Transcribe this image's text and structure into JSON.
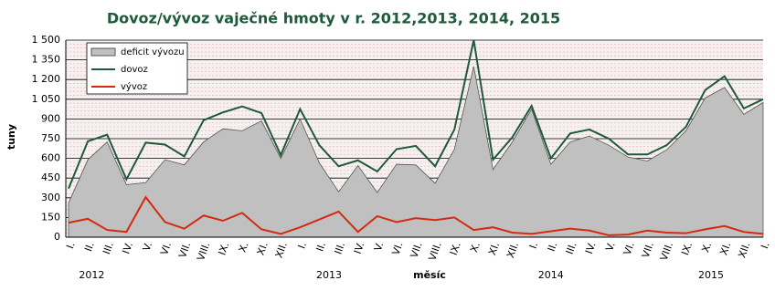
{
  "chart_data": {
    "type": "line",
    "title": "Dovoz/vývoz vaječné hmoty v r. 2012,2013, 2014, 2015",
    "y_label": "tuny",
    "x_label": "měsíc",
    "categories": [
      "I.",
      "II.",
      "III.",
      "IV.",
      "V.",
      "VI.",
      "VII.",
      "VIII.",
      "IX.",
      "X.",
      "XI.",
      "XII.",
      "I.",
      "II.",
      "III.",
      "IV.",
      "V.",
      "VI.",
      "VII.",
      "VIII.",
      "IX.",
      "X.",
      "XI.",
      "XII.",
      "I.",
      "II.",
      "III.",
      "IV.",
      "V.",
      "VI.",
      "VII.",
      "VIII.",
      "IX.",
      "X.",
      "XI.",
      "XII.",
      "I."
    ],
    "year_labels": [
      "2012",
      "2013",
      "2014",
      "2015"
    ],
    "series": [
      {
        "name": "deficit vývozu",
        "kind": "area",
        "color": "#c0c0c0",
        "values": [
          260,
          590,
          725,
          400,
          415,
          590,
          550,
          725,
          825,
          810,
          885,
          600,
          900,
          565,
          345,
          545,
          340,
          555,
          550,
          410,
          670,
          1300,
          515,
          725,
          975,
          555,
          725,
          770,
          700,
          610,
          580,
          665,
          810,
          1060,
          1140,
          935,
          1025
        ]
      },
      {
        "name": "dovoz",
        "kind": "line",
        "color": "#1e5a3c",
        "values": [
          370,
          730,
          780,
          440,
          720,
          705,
          615,
          890,
          950,
          995,
          945,
          625,
          975,
          700,
          540,
          585,
          500,
          670,
          695,
          540,
          820,
          1500,
          590,
          760,
          1000,
          600,
          790,
          820,
          750,
          630,
          630,
          700,
          840,
          1120,
          1225,
          980,
          1050
        ]
      },
      {
        "name": "vývoz",
        "kind": "line",
        "color": "#d42a10",
        "values": [
          110,
          140,
          55,
          40,
          305,
          115,
          65,
          165,
          125,
          185,
          60,
          25,
          75,
          135,
          195,
          40,
          160,
          115,
          145,
          130,
          150,
          55,
          75,
          35,
          25,
          45,
          65,
          50,
          15,
          20,
          50,
          35,
          30,
          60,
          85,
          40,
          25
        ]
      }
    ],
    "ylim": [
      0,
      1500
    ],
    "yticks": [
      0,
      150,
      300,
      450,
      600,
      750,
      900,
      {
        "value": 1050,
        "label": "1 050"
      },
      {
        "value": 1200,
        "label": "1 200"
      },
      {
        "value": 1350,
        "label": "1 350"
      },
      {
        "value": 1500,
        "label": "1 500"
      }
    ],
    "grid": true
  }
}
